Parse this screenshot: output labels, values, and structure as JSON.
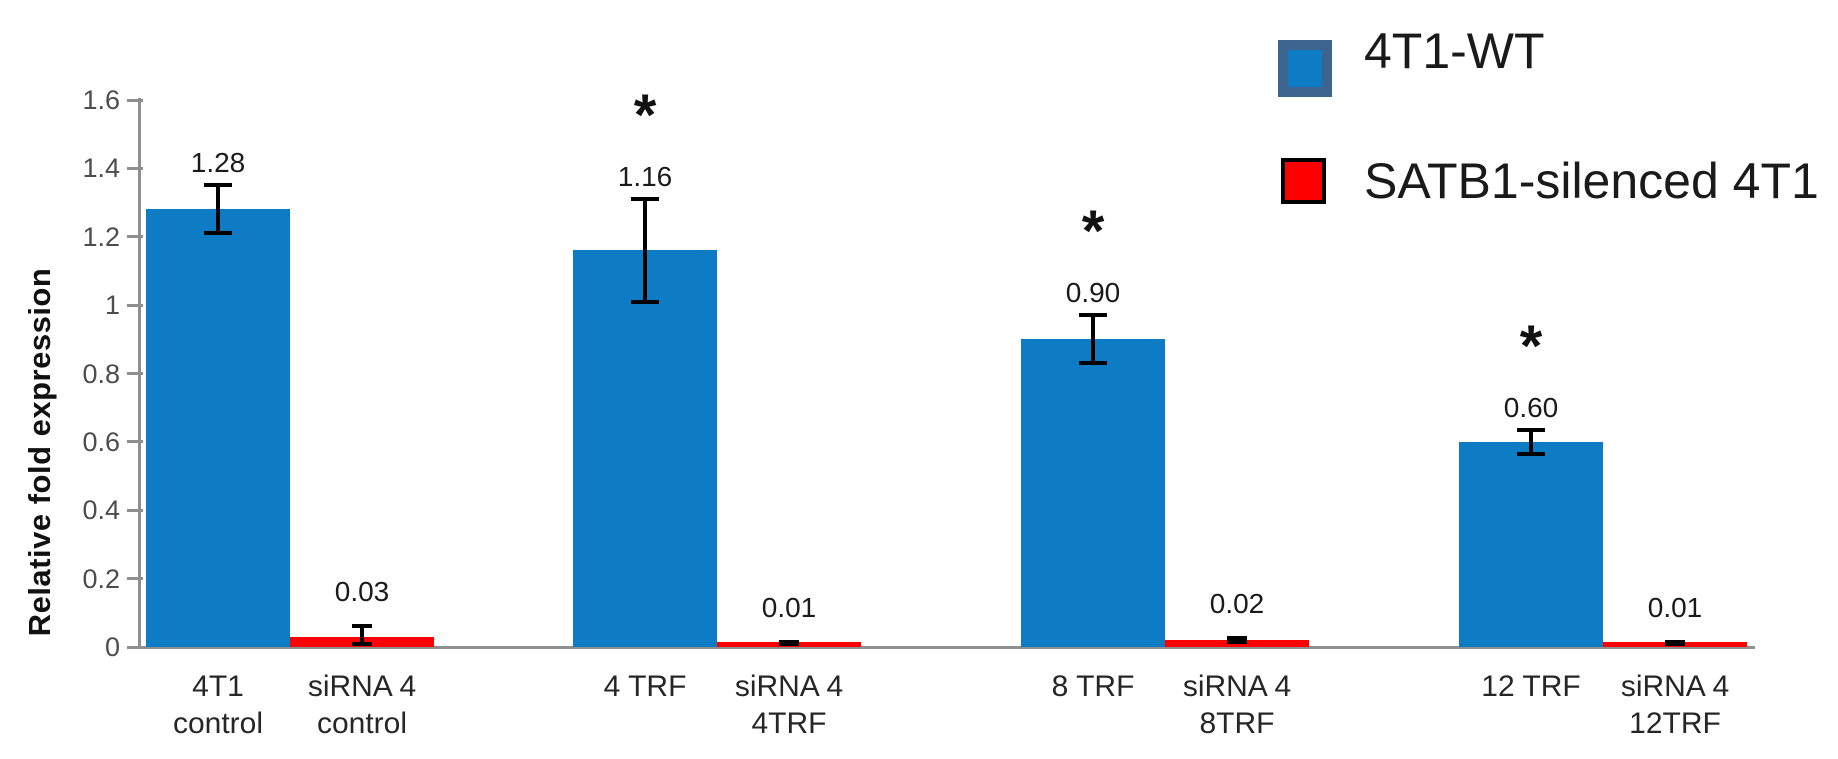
{
  "chart_data": {
    "type": "bar",
    "title": "",
    "ylabel": "Relative fold expression",
    "xlabel": "",
    "ylim": [
      0,
      1.6
    ],
    "yticks": [
      0,
      0.2,
      0.4,
      0.6,
      0.8,
      1,
      1.2,
      1.4,
      1.6
    ],
    "ytick_labels": [
      "0",
      "0.2",
      "0.4",
      "0.6",
      "0.8",
      "1",
      "1.2",
      "1.4",
      "1.6"
    ],
    "grid": false,
    "legend_position": "top-right",
    "significance_marker": "*",
    "axis_color": "#8f8f8f",
    "series": [
      {
        "name": "4T1-WT",
        "color": "#0d7cc4",
        "legend_border": "#3d648f"
      },
      {
        "name": "SATB1-silenced 4T1",
        "color": "#ff0000",
        "legend_border": "#000000"
      }
    ],
    "bars": [
      {
        "category": "4T1\ncontrol",
        "series": 0,
        "value": 1.28,
        "label": "1.28",
        "error": 0.07,
        "sig": ""
      },
      {
        "category": "siRNA 4\ncontrol",
        "series": 1,
        "value": 0.03,
        "label": "0.03",
        "error": 0.03,
        "sig": ""
      },
      {
        "category": "4 TRF",
        "series": 0,
        "value": 1.16,
        "label": "1.16",
        "error": 0.15,
        "sig": "*"
      },
      {
        "category": "siRNA 4\n4TRF",
        "series": 1,
        "value": 0.01,
        "label": "0.01",
        "error": 0.005,
        "sig": ""
      },
      {
        "category": "8 TRF",
        "series": 0,
        "value": 0.9,
        "label": "0.90",
        "error": 0.07,
        "sig": "*"
      },
      {
        "category": "siRNA 4\n8TRF",
        "series": 1,
        "value": 0.02,
        "label": "0.02",
        "error": 0.005,
        "sig": ""
      },
      {
        "category": "12 TRF",
        "series": 0,
        "value": 0.6,
        "label": "0.60",
        "error": 0.035,
        "sig": "*"
      },
      {
        "category": "siRNA 4\n12TRF",
        "series": 1,
        "value": 0.01,
        "label": "0.01",
        "error": 0.005,
        "sig": ""
      }
    ]
  }
}
